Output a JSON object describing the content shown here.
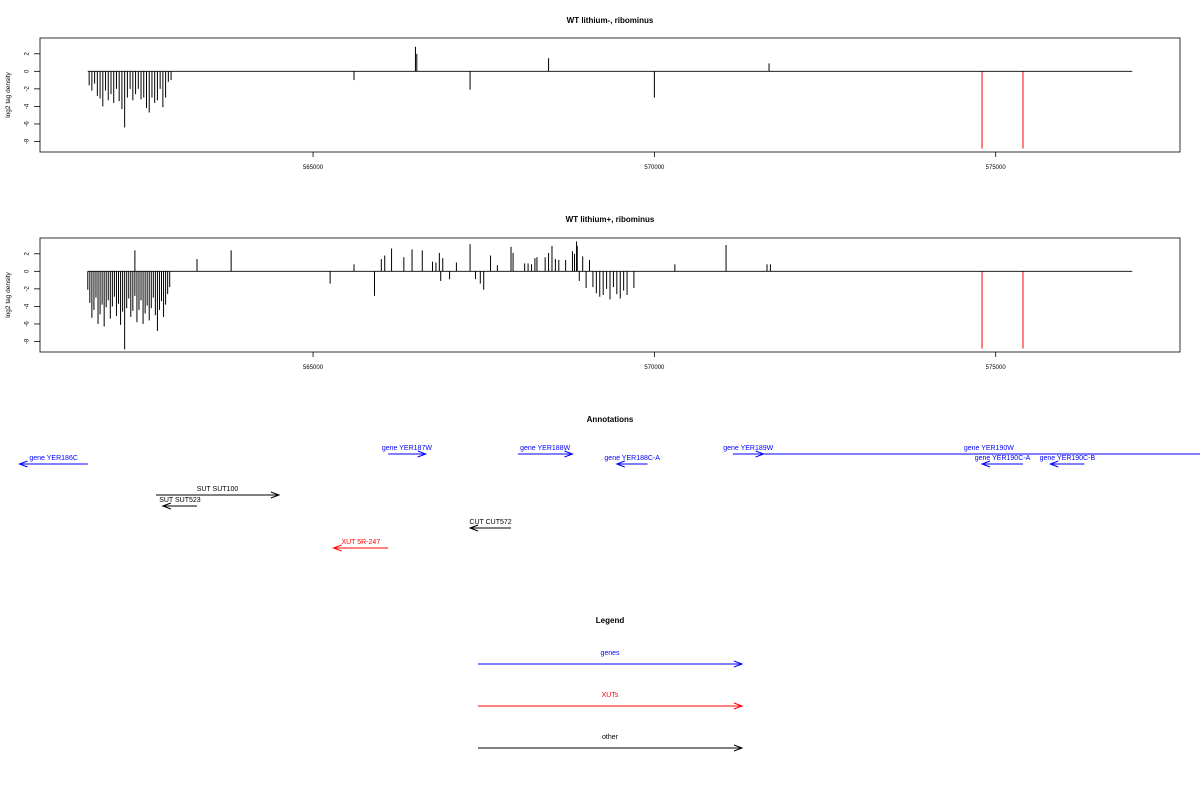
{
  "chart_data": [
    {
      "type": "bar",
      "title": "WT lithium-, ribominus",
      "xlabel": "",
      "ylabel": "log2 tag density",
      "xlim": [
        561000,
        577700
      ],
      "ylim": [
        -9.2,
        3.8
      ],
      "xticks": [
        565000,
        570000,
        575000
      ],
      "yticks": [
        -8,
        -6,
        -4,
        -2,
        0,
        2
      ],
      "baseline": [
        561700,
        577000
      ],
      "color_default": "#000000",
      "color_highlight": "#ff0000",
      "bars": [
        [
          561720,
          -1.6
        ],
        [
          561760,
          -2.2
        ],
        [
          561800,
          -1.4
        ],
        [
          561840,
          -2.8
        ],
        [
          561880,
          -3.1
        ],
        [
          561920,
          -4.0
        ],
        [
          561960,
          -2.2
        ],
        [
          562000,
          -3.3
        ],
        [
          562040,
          -2.6
        ],
        [
          562080,
          -3.6
        ],
        [
          562120,
          -2.0
        ],
        [
          562160,
          -3.4
        ],
        [
          562200,
          -4.3
        ],
        [
          562240,
          -6.4
        ],
        [
          562280,
          -3.0
        ],
        [
          562320,
          -2.0
        ],
        [
          562360,
          -3.3
        ],
        [
          562400,
          -2.6
        ],
        [
          562440,
          -2.0
        ],
        [
          562480,
          -3.2
        ],
        [
          562520,
          -3.0
        ],
        [
          562560,
          -4.2
        ],
        [
          562600,
          -4.7
        ],
        [
          562640,
          -3.0
        ],
        [
          562680,
          -3.6
        ],
        [
          562720,
          -3.3
        ],
        [
          562760,
          -2.0
        ],
        [
          562800,
          -4.1
        ],
        [
          562840,
          -3.0
        ],
        [
          562880,
          -1.2
        ],
        [
          562920,
          -1.0
        ],
        [
          565600,
          -1.0
        ],
        [
          566500,
          2.8
        ],
        [
          566520,
          2.0
        ],
        [
          567300,
          -2.1
        ],
        [
          568450,
          1.5
        ],
        [
          570000,
          -3.0
        ],
        [
          571680,
          0.9
        ],
        [
          574800,
          -8.8,
          "r"
        ],
        [
          575400,
          -8.8,
          "r"
        ]
      ]
    },
    {
      "type": "bar",
      "title": "WT lithium+, ribominus",
      "xlabel": "",
      "ylabel": "log2 tag density",
      "xlim": [
        561000,
        577700
      ],
      "ylim": [
        -9.2,
        3.8
      ],
      "xticks": [
        565000,
        570000,
        575000
      ],
      "yticks": [
        -8,
        -6,
        -4,
        -2,
        0,
        2
      ],
      "baseline": [
        561700,
        577000
      ],
      "color_default": "#000000",
      "color_highlight": "#ff0000",
      "bars": [
        [
          561700,
          -2.1
        ],
        [
          561730,
          -3.6
        ],
        [
          561760,
          -5.3
        ],
        [
          561790,
          -4.4
        ],
        [
          561820,
          -3.0
        ],
        [
          561850,
          -6.0
        ],
        [
          561880,
          -4.9
        ],
        [
          561910,
          -3.8
        ],
        [
          561940,
          -6.3
        ],
        [
          561970,
          -4.1
        ],
        [
          562000,
          -3.3
        ],
        [
          562030,
          -5.4
        ],
        [
          562060,
          -4.0
        ],
        [
          562090,
          -2.9
        ],
        [
          562120,
          -5.1
        ],
        [
          562150,
          -3.7
        ],
        [
          562180,
          -6.1
        ],
        [
          562210,
          -4.6
        ],
        [
          562240,
          -8.9
        ],
        [
          562270,
          -4.2
        ],
        [
          562300,
          -3.1
        ],
        [
          562330,
          -5.2
        ],
        [
          562360,
          -4.5
        ],
        [
          562390,
          -2.8
        ],
        [
          562420,
          -5.8
        ],
        [
          562450,
          -4.4
        ],
        [
          562480,
          -3.3
        ],
        [
          562510,
          -6.0
        ],
        [
          562540,
          -4.8
        ],
        [
          562570,
          -3.9
        ],
        [
          562600,
          -5.6
        ],
        [
          562630,
          -4.2
        ],
        [
          562660,
          -3.0
        ],
        [
          562690,
          -5.0
        ],
        [
          562720,
          -6.8
        ],
        [
          562750,
          -4.4
        ],
        [
          562780,
          -3.4
        ],
        [
          562810,
          -5.2
        ],
        [
          562840,
          -3.8
        ],
        [
          562870,
          -2.6
        ],
        [
          562900,
          -1.8
        ],
        [
          562390,
          2.4
        ],
        [
          563300,
          1.4
        ],
        [
          563800,
          2.4
        ],
        [
          565250,
          -1.4
        ],
        [
          565600,
          0.8
        ],
        [
          565900,
          -2.8
        ],
        [
          566000,
          1.4
        ],
        [
          566050,
          1.8
        ],
        [
          566150,
          2.6
        ],
        [
          566330,
          1.6
        ],
        [
          566450,
          2.5
        ],
        [
          566600,
          2.4
        ],
        [
          566750,
          1.1
        ],
        [
          566800,
          1.0
        ],
        [
          566850,
          2.1
        ],
        [
          566870,
          -1.1
        ],
        [
          566900,
          1.5
        ],
        [
          567000,
          -0.9
        ],
        [
          567100,
          1.0
        ],
        [
          567300,
          3.1
        ],
        [
          567380,
          -0.9
        ],
        [
          567450,
          -1.4
        ],
        [
          567500,
          -2.1
        ],
        [
          567600,
          1.8
        ],
        [
          567700,
          0.7
        ],
        [
          567900,
          2.8
        ],
        [
          567930,
          2.1
        ],
        [
          568100,
          0.9
        ],
        [
          568150,
          0.9
        ],
        [
          568200,
          0.8
        ],
        [
          568250,
          1.5
        ],
        [
          568280,
          1.6
        ],
        [
          568400,
          1.6
        ],
        [
          568450,
          2.1
        ],
        [
          568500,
          2.9
        ],
        [
          568550,
          1.4
        ],
        [
          568600,
          1.3
        ],
        [
          568700,
          1.3
        ],
        [
          568800,
          2.3
        ],
        [
          568830,
          2.0
        ],
        [
          568860,
          3.4
        ],
        [
          568870,
          2.9
        ],
        [
          568900,
          -1.1
        ],
        [
          568950,
          1.7
        ],
        [
          569000,
          -1.9
        ],
        [
          569050,
          1.3
        ],
        [
          569100,
          -1.8
        ],
        [
          569150,
          -2.5
        ],
        [
          569200,
          -2.9
        ],
        [
          569250,
          -2.7
        ],
        [
          569300,
          -2.0
        ],
        [
          569350,
          -3.2
        ],
        [
          569400,
          -1.8
        ],
        [
          569450,
          -2.6
        ],
        [
          569500,
          -3.1
        ],
        [
          569550,
          -2.2
        ],
        [
          569600,
          -2.7
        ],
        [
          569700,
          -1.9
        ],
        [
          570300,
          0.8
        ],
        [
          571050,
          3.0
        ],
        [
          571650,
          0.8
        ],
        [
          571700,
          0.8
        ],
        [
          574800,
          -8.8,
          "r"
        ],
        [
          575400,
          -8.8,
          "r"
        ]
      ]
    }
  ],
  "annotations": {
    "title": "Annotations",
    "xlim": [
      561000,
      577700
    ],
    "features": [
      {
        "label": "gene YER186C",
        "start": 561700,
        "end": 560700,
        "row": 1,
        "color": "#0000ff"
      },
      {
        "label": "gene YER187W",
        "start": 566100,
        "end": 566650,
        "row": 0,
        "color": "#0000ff"
      },
      {
        "label": "gene YER188W",
        "start": 568000,
        "end": 568800,
        "row": 0,
        "color": "#0000ff"
      },
      {
        "label": "gene YER188C-A",
        "start": 569900,
        "end": 569450,
        "row": 1,
        "color": "#0000ff"
      },
      {
        "label": "gene YER189W",
        "start": 571150,
        "end": 571600,
        "row": 0,
        "color": "#0000ff"
      },
      {
        "label": "gene YER190W",
        "start": 571600,
        "end": 578200,
        "row": 0,
        "color": "#0000ff"
      },
      {
        "label": "gene YER190C-A",
        "start": 575400,
        "end": 574800,
        "row": 1,
        "color": "#0000ff"
      },
      {
        "label": "gene YER190C-B",
        "start": 576300,
        "end": 575800,
        "row": 1,
        "color": "#0000ff"
      },
      {
        "label": "SUT SUT100",
        "start": 562700,
        "end": 564500,
        "row": 2,
        "color": "#000000"
      },
      {
        "label": "SUT SUT523",
        "start": 563300,
        "end": 562800,
        "row": 3,
        "color": "#000000"
      },
      {
        "label": "CUT CUT572",
        "start": 567900,
        "end": 567300,
        "row": 4,
        "color": "#000000"
      },
      {
        "label": "XUT 5R-247",
        "start": 566100,
        "end": 565300,
        "row": 5,
        "color": "#ff0000"
      }
    ]
  },
  "legend": {
    "title": "Legend",
    "items": [
      {
        "label": "genes",
        "color": "#0000ff"
      },
      {
        "label": "XUTs",
        "color": "#ff0000"
      },
      {
        "label": "other",
        "color": "#000000"
      }
    ]
  }
}
